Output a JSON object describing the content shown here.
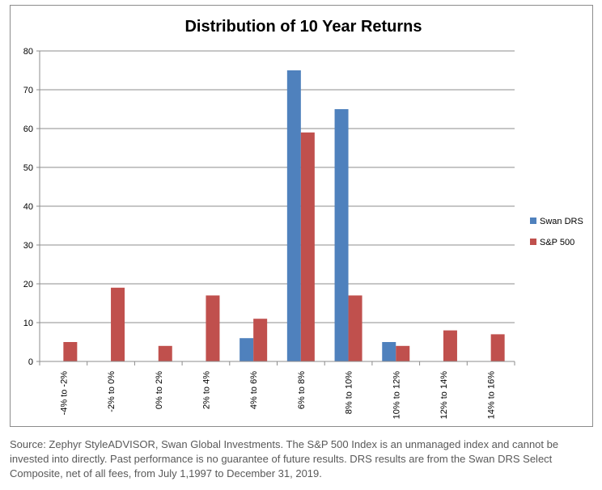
{
  "chart_data": {
    "type": "bar",
    "title": "Distribution of 10 Year Returns",
    "xlabel": "",
    "ylabel": "",
    "categories": [
      "-4% to -2%",
      "-2% to 0%",
      "0% to 2%",
      "2% to 4%",
      "4% to 6%",
      "6% to 8%",
      "8% to 10%",
      "10% to 12%",
      "12% to 14%",
      "14% to 16%"
    ],
    "series": [
      {
        "name": "Swan DRS",
        "color": "#4f81bd",
        "values": [
          0,
          0,
          0,
          0,
          6,
          75,
          65,
          5,
          0,
          0
        ]
      },
      {
        "name": "S&P 500",
        "color": "#c0504d",
        "values": [
          5,
          19,
          4,
          17,
          11,
          59,
          17,
          4,
          8,
          7
        ]
      }
    ],
    "ylim": [
      0,
      80
    ],
    "yticks": [
      0,
      10,
      20,
      30,
      40,
      50,
      60,
      70,
      80
    ],
    "grid": true,
    "legend_position": "right"
  },
  "footnote": "Source: Zephyr StyleADVISOR, Swan Global Investments. The S&P 500 Index is an unmanaged index and cannot be invested into directly. Past performance is no guarantee of future results. DRS results are from the Swan DRS Select Composite, net of all fees, from July 1,1997 to December 31, 2019."
}
